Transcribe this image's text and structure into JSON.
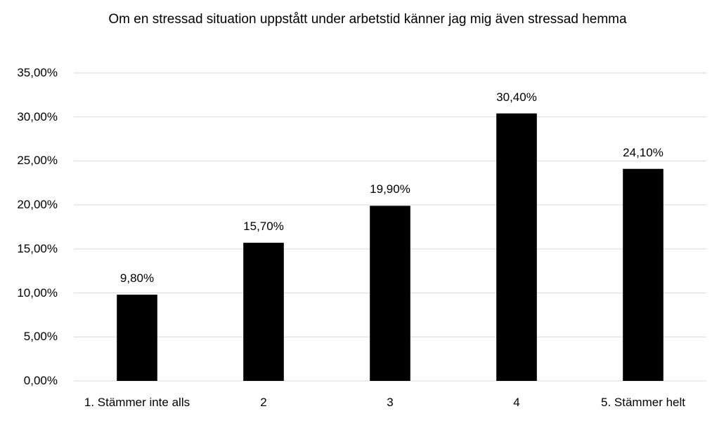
{
  "chart_data": {
    "type": "bar",
    "title": "Om en stressad situation uppstått under arbetstid känner jag mig även stressad hemma",
    "categories": [
      "1. Stämmer inte alls",
      "2",
      "3",
      "4",
      "5. Stämmer helt"
    ],
    "values": [
      9.8,
      15.7,
      19.9,
      30.4,
      24.1
    ],
    "value_labels": [
      "9,80%",
      "15,70%",
      "19,90%",
      "30,40%",
      "24,10%"
    ],
    "color": "#000000",
    "ylim": [
      0,
      35
    ],
    "yticks": [
      {
        "value": 0,
        "label": "0,00%"
      },
      {
        "value": 5,
        "label": "5,00%"
      },
      {
        "value": 10,
        "label": "10,00%"
      },
      {
        "value": 15,
        "label": "15,00%"
      },
      {
        "value": 20,
        "label": "20,00%"
      },
      {
        "value": 25,
        "label": "25,00%"
      },
      {
        "value": 30,
        "label": "30,00%"
      },
      {
        "value": 35,
        "label": "35,00%"
      }
    ],
    "grid": true
  }
}
